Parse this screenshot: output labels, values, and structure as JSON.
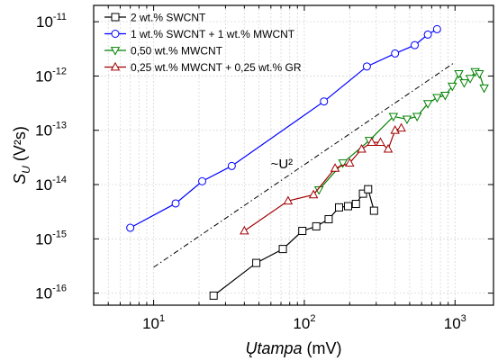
{
  "chart_data": {
    "type": "scatter",
    "x_scale": "log",
    "y_scale": "log",
    "xlabel": {
      "prefix": "",
      "italic": "Ųtampa",
      "suffix": " (mV)"
    },
    "ylabel": {
      "base": "S",
      "sub": "U",
      "suffix": " (V²s)"
    },
    "xlim": [
      4,
      1800
    ],
    "ylim": [
      6e-17,
      2e-11
    ],
    "x_ticks": [
      {
        "value": 10,
        "base": "10",
        "exp": "1"
      },
      {
        "value": 100,
        "base": "10",
        "exp": "2"
      },
      {
        "value": 1000,
        "base": "10",
        "exp": "3"
      }
    ],
    "y_ticks": [
      {
        "value": 1e-16,
        "base": "10",
        "exp": "-16"
      },
      {
        "value": 1e-15,
        "base": "10",
        "exp": "-15"
      },
      {
        "value": 1e-14,
        "base": "10",
        "exp": "-14"
      },
      {
        "value": 1e-13,
        "base": "10",
        "exp": "-13"
      },
      {
        "value": 1e-12,
        "base": "10",
        "exp": "-12"
      },
      {
        "value": 1e-11,
        "base": "10",
        "exp": "-11"
      }
    ],
    "grid": true,
    "legend_position": "top-left",
    "reference_line": {
      "label": "~U²",
      "x": [
        10,
        1000
      ],
      "y": [
        3e-16,
        1.8e-12
      ]
    },
    "series": [
      {
        "name": "2 wt.% SWCNT",
        "color": "#000000",
        "marker": "square",
        "x": [
          25,
          48,
          72,
          97,
          120,
          145,
          170,
          195,
          220,
          245,
          265,
          290
        ],
        "y": [
          9e-17,
          3.6e-16,
          6.5e-16,
          1.4e-15,
          1.7e-15,
          2.3e-15,
          3.8e-15,
          4e-15,
          4.4e-15,
          6.8e-15,
          8.2e-15,
          3.3e-15
        ]
      },
      {
        "name": "1 wt.% SWCNT + 1 wt.% MWCNT",
        "color": "#0000ff",
        "marker": "circle",
        "x": [
          7,
          14,
          21,
          33,
          135,
          260,
          400,
          540,
          660,
          760
        ],
        "y": [
          1.6e-15,
          4.5e-15,
          1.15e-14,
          2.2e-14,
          3.4e-13,
          1.5e-12,
          2.6e-12,
          3.7e-12,
          5.8e-12,
          7.3e-12
        ]
      },
      {
        "name": "0,50 wt.% MWCNT",
        "color": "#008000",
        "marker": "triangle-down",
        "x": [
          125,
          180,
          270,
          390,
          480,
          560,
          660,
          760,
          860,
          960,
          1060,
          1150,
          1260,
          1360,
          1450,
          1560
        ],
        "y": [
          8e-15,
          2.5e-14,
          6.5e-14,
          1.8e-13,
          1.6e-13,
          1.8e-13,
          3.1e-13,
          4e-13,
          4.4e-13,
          6.5e-13,
          1.1e-12,
          7.5e-13,
          9e-13,
          1.2e-12,
          1.1e-12,
          6e-13
        ]
      },
      {
        "name": "0,25 wt.% MWCNT + 0,25 wt.% GR",
        "color": "#a00000",
        "marker": "triangle-up",
        "x": [
          40,
          78,
          115,
          160,
          200,
          240,
          280,
          320,
          360,
          400,
          440
        ],
        "y": [
          1.4e-15,
          5e-15,
          6.5e-15,
          2e-14,
          2.5e-14,
          4.5e-14,
          6e-14,
          6e-14,
          4.5e-14,
          1e-13,
          1.1e-13
        ]
      }
    ]
  }
}
